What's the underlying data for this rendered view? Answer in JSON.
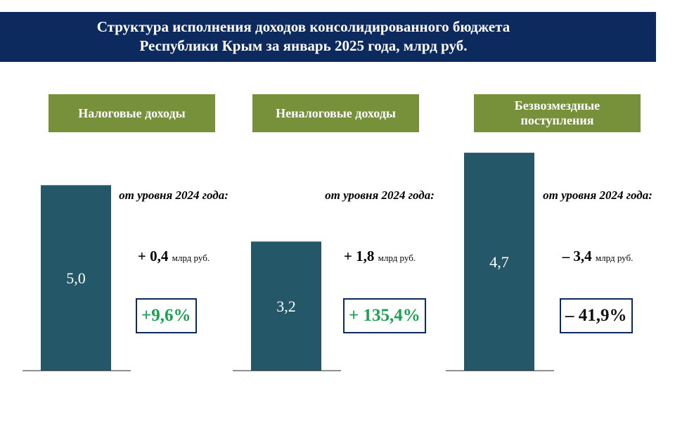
{
  "title_lines": [
    "Структура исполнения доходов консолидированного бюджета",
    "Республики Крым за январь 2025 года, млрд руб."
  ],
  "chart_data": [
    {
      "type": "bar",
      "title": "Налоговые доходы",
      "categories": [
        null
      ],
      "values": [
        5.0
      ],
      "value_labels": [
        "5,0"
      ],
      "color": "#245868",
      "ylim": [
        0,
        6.2
      ],
      "annotation": "от уровня 2024 года:",
      "change": "+ 0,4",
      "change_unit": "млрд руб.",
      "percent": "+9,6%",
      "percent_color": "#1aa150"
    },
    {
      "type": "bar",
      "title": "Неналоговые доходы",
      "categories": [
        null
      ],
      "values": [
        3.2
      ],
      "value_labels": [
        "3,2"
      ],
      "color": "#245868",
      "ylim": [
        0,
        5.7
      ],
      "annotation": "от уровня 2024 года:",
      "change": "+ 1,8",
      "change_unit": "млрд руб.",
      "percent": "+ 135,4%",
      "percent_color": "#1aa150"
    },
    {
      "type": "bar",
      "title": "Безвозмездные поступления",
      "categories": [
        null
      ],
      "values": [
        4.7
      ],
      "value_labels": [
        "4,7"
      ],
      "color": "#245868",
      "ylim": [
        0,
        4.96
      ],
      "annotation": "от уровня 2024 года:",
      "change": "– 3,4",
      "change_unit": "млрд руб.",
      "percent": "– 41,9%",
      "percent_color": "#111111"
    }
  ]
}
